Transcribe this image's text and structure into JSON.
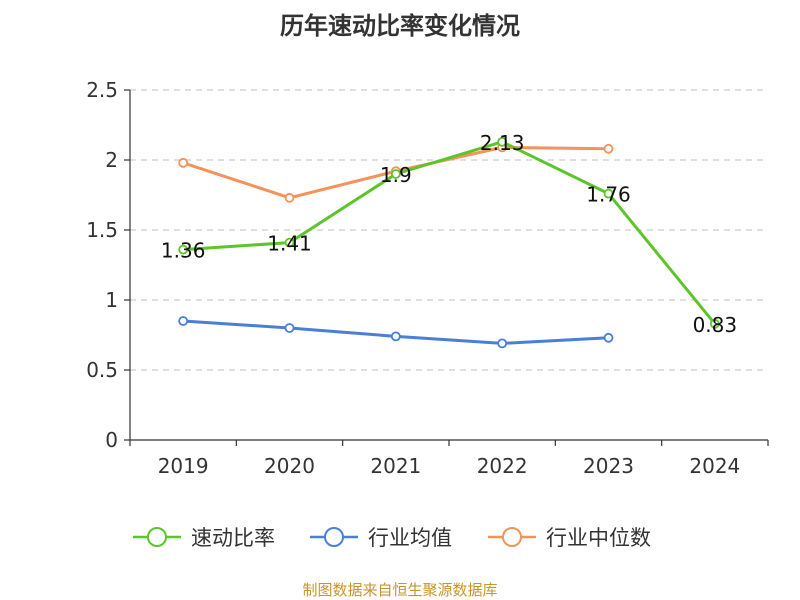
{
  "chart_data": {
    "type": "line",
    "title": "历年速动比率变化情况",
    "categories": [
      "2019",
      "2020",
      "2021",
      "2022",
      "2023",
      "2024"
    ],
    "ylim": [
      0,
      2.5
    ],
    "yticks": [
      0,
      0.5,
      1,
      1.5,
      2,
      2.5
    ],
    "ytick_labels": [
      "0",
      "0.5",
      "1",
      "1.5",
      "2",
      "2.5"
    ],
    "grid": "horizontal dashed",
    "legend_position": "bottom",
    "series": [
      {
        "name": "速动比率",
        "color": "#5cc52a",
        "values": [
          1.36,
          1.41,
          1.9,
          2.13,
          1.76,
          0.83
        ],
        "labels": [
          "1.36",
          "1.41",
          "1.9",
          "2.13",
          "1.76",
          "0.83"
        ]
      },
      {
        "name": "行业均值",
        "color": "#4a7fd8",
        "values": [
          0.85,
          0.8,
          0.74,
          0.69,
          0.73,
          null
        ]
      },
      {
        "name": "行业中位数",
        "color": "#f59259",
        "values": [
          1.98,
          1.73,
          1.92,
          2.09,
          2.08,
          null
        ]
      }
    ],
    "source": "制图数据来自恒生聚源数据库"
  }
}
